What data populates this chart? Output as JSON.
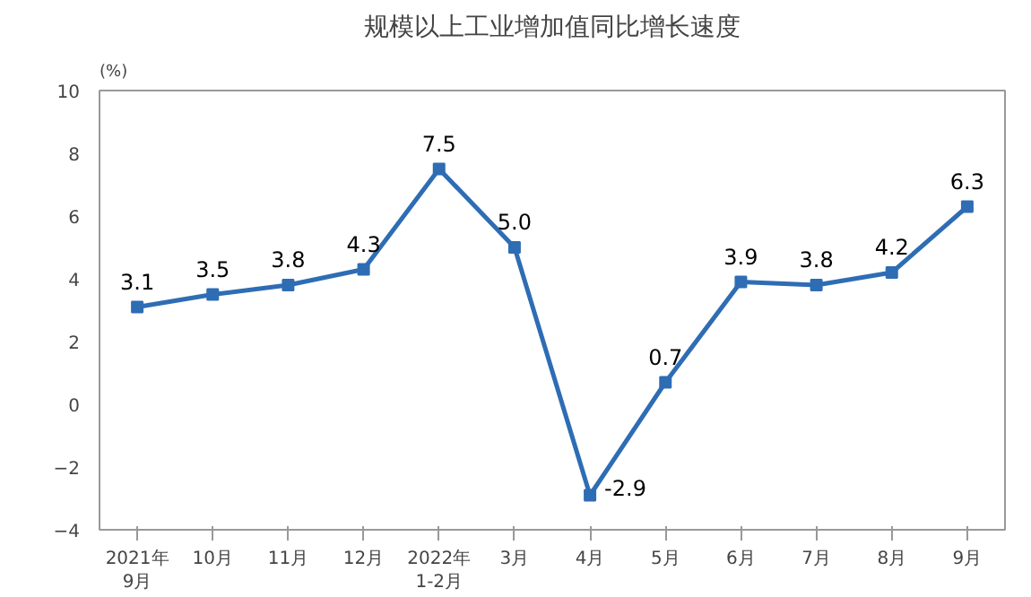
{
  "chart_data": {
    "type": "line",
    "title": "规模以上工业增加值同比增长速度",
    "ylabel": "(%)",
    "categories": [
      "2021年\n9月",
      "10月",
      "11月",
      "12月",
      "2022年\n1-2月",
      "3月",
      "4月",
      "5月",
      "6月",
      "7月",
      "8月",
      "9月"
    ],
    "series": [
      {
        "color": "#2e6db4",
        "values": [
          3.1,
          3.5,
          3.8,
          4.3,
          7.5,
          5.0,
          -2.9,
          0.7,
          3.9,
          3.8,
          4.2,
          6.3
        ],
        "value_labels": [
          "3.1",
          "3.5",
          "3.8",
          "4.3",
          "7.5",
          "5.0",
          "-2.9",
          "0.7",
          "3.9",
          "3.8",
          "4.2",
          "6.3"
        ]
      }
    ],
    "ylim": [
      -4,
      10
    ],
    "yticks": [
      -4,
      -2,
      0,
      2,
      4,
      6,
      8,
      10
    ],
    "grid": false,
    "marker": "square",
    "line_style": "solid"
  }
}
